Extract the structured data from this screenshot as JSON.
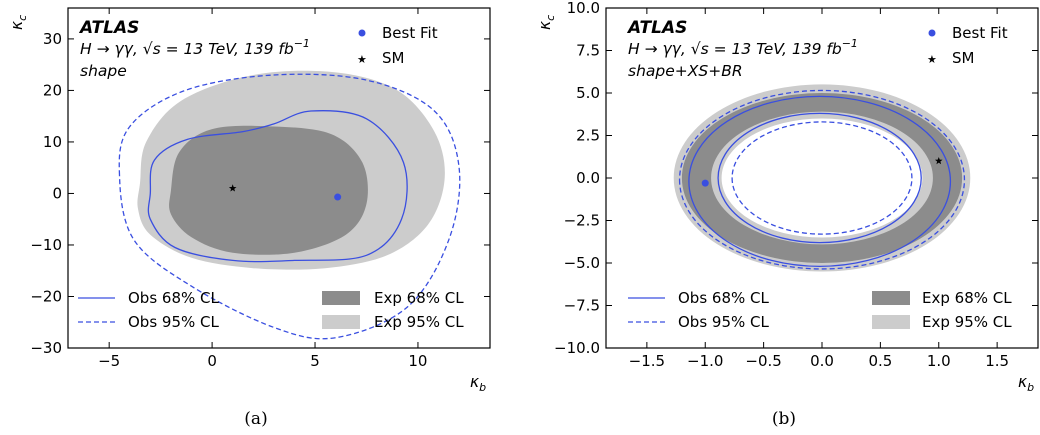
{
  "figure": {
    "panels": [
      {
        "caption": "(a)",
        "experiment": "ATLAS",
        "process_line": "H → γγ, √s = 13 TeV, 139 fb",
        "lumi_exponent": "−1",
        "analysis": "shape",
        "xlabel": "κ",
        "xlabel_sub": "b",
        "ylabel": "κ",
        "ylabel_sub": "c",
        "legend_markers": [
          {
            "label": "Best Fit",
            "color": "#3a4fe0",
            "marker": "circle"
          },
          {
            "label": "SM",
            "color": "#000000",
            "marker": "star"
          }
        ],
        "legend_contours": [
          {
            "label": "Obs 68% CL",
            "style": "solid",
            "color": "#3a4fe0"
          },
          {
            "label": "Obs 95% CL",
            "style": "dashed",
            "color": "#3a4fe0"
          },
          {
            "label": "Exp 68% CL",
            "style": "fill",
            "color": "#8c8c8c"
          },
          {
            "label": "Exp 95% CL",
            "style": "fill",
            "color": "#cccccc"
          }
        ]
      },
      {
        "caption": "(b)",
        "experiment": "ATLAS",
        "process_line": "H → γγ, √s = 13 TeV, 139 fb",
        "lumi_exponent": "−1",
        "analysis": "shape+XS+BR",
        "xlabel": "κ",
        "xlabel_sub": "b",
        "ylabel": "κ",
        "ylabel_sub": "c",
        "legend_markers": [
          {
            "label": "Best Fit",
            "color": "#3a4fe0",
            "marker": "circle"
          },
          {
            "label": "SM",
            "color": "#000000",
            "marker": "star"
          }
        ],
        "legend_contours": [
          {
            "label": "Obs 68% CL",
            "style": "solid",
            "color": "#3a4fe0"
          },
          {
            "label": "Obs 95% CL",
            "style": "dashed",
            "color": "#3a4fe0"
          },
          {
            "label": "Exp 68% CL",
            "style": "fill",
            "color": "#8c8c8c"
          },
          {
            "label": "Exp 95% CL",
            "style": "fill",
            "color": "#cccccc"
          }
        ]
      }
    ]
  },
  "chart_data": [
    {
      "type": "scatter",
      "title": "",
      "xlabel": "κ_b",
      "ylabel": "κ_c",
      "xlim": [
        -7,
        13.5
      ],
      "ylim": [
        -30,
        36
      ],
      "xticks": [
        -5,
        0,
        5,
        10
      ],
      "xtick_labels": [
        "−5",
        "0",
        "5",
        "10"
      ],
      "yticks": [
        -30,
        -20,
        -10,
        0,
        10,
        20,
        30
      ],
      "ytick_labels": [
        "−30",
        "−20",
        "−10",
        "0",
        "10",
        "20",
        "30"
      ],
      "grid": false,
      "legend_placement": "top-right and bottom",
      "best_fit": {
        "x": 6.1,
        "y": -0.7
      },
      "sm": {
        "x": 1,
        "y": 1
      },
      "contours": {
        "exp95": [
          [
            -3.5,
            2
          ],
          [
            -3.2,
            10
          ],
          [
            -1.5,
            18
          ],
          [
            2,
            23
          ],
          [
            6,
            23.5
          ],
          [
            9,
            20
          ],
          [
            10.8,
            12
          ],
          [
            11.3,
            3
          ],
          [
            10.5,
            -6
          ],
          [
            8.5,
            -12
          ],
          [
            5.5,
            -14.5
          ],
          [
            2,
            -14.5
          ],
          [
            -1,
            -12.5
          ],
          [
            -3,
            -8
          ],
          [
            -3.6,
            -3
          ]
        ],
        "exp68": [
          [
            -2,
            0.5
          ],
          [
            -1.6,
            8
          ],
          [
            0,
            12.5
          ],
          [
            3,
            13
          ],
          [
            5.8,
            11.5
          ],
          [
            7.3,
            6
          ],
          [
            7.5,
            -2
          ],
          [
            6.5,
            -8
          ],
          [
            4,
            -11.5
          ],
          [
            1,
            -11.5
          ],
          [
            -1,
            -8.5
          ],
          [
            -2,
            -4
          ]
        ],
        "obs68": [
          [
            -3,
            0
          ],
          [
            -2.8,
            6.5
          ],
          [
            -1.2,
            10.5
          ],
          [
            1.5,
            12
          ],
          [
            3,
            13.5
          ],
          [
            4.8,
            16
          ],
          [
            7.5,
            14.5
          ],
          [
            9.3,
            6
          ],
          [
            9.2,
            -5
          ],
          [
            7.5,
            -12
          ],
          [
            4,
            -13
          ],
          [
            1,
            -13
          ],
          [
            -1.8,
            -10.5
          ],
          [
            -3,
            -5
          ]
        ],
        "obs95": [
          [
            -4.5,
            3.5
          ],
          [
            -4,
            13
          ],
          [
            -1.3,
            20
          ],
          [
            3,
            23
          ],
          [
            7.5,
            22
          ],
          [
            10.8,
            16
          ],
          [
            12,
            5
          ],
          [
            11.5,
            -9
          ],
          [
            9.5,
            -22
          ],
          [
            6,
            -28
          ],
          [
            3,
            -26
          ],
          [
            -1,
            -18
          ],
          [
            -3.8,
            -9
          ]
        ]
      }
    },
    {
      "type": "scatter",
      "title": "",
      "xlabel": "κ_b",
      "ylabel": "κ_c",
      "xlim": [
        -1.85,
        1.85
      ],
      "ylim": [
        -10,
        10
      ],
      "xticks": [
        -1.5,
        -1.0,
        -0.5,
        0.0,
        0.5,
        1.0,
        1.5
      ],
      "xtick_labels": [
        "−1.5",
        "−1.0",
        "−0.5",
        "0.0",
        "0.5",
        "1.0",
        "1.5"
      ],
      "yticks": [
        -10,
        -7.5,
        -5,
        -2.5,
        0,
        2.5,
        5,
        7.5,
        10
      ],
      "ytick_labels": [
        "−10.0",
        "−7.5",
        "−5.0",
        "−2.5",
        "0.0",
        "2.5",
        "5.0",
        "7.5",
        "10.0"
      ],
      "grid": false,
      "legend_placement": "top-right and bottom",
      "best_fit": {
        "x": -1.0,
        "y": -0.3
      },
      "sm": {
        "x": 1.0,
        "y": 1.0
      },
      "contours": {
        "exp95": [
          {
            "cx": 0,
            "cy": 0,
            "rx": 1.27,
            "ry": 5.5
          }
        ],
        "exp68": [
          {
            "cx": 0,
            "cy": 0,
            "rx": 1.2,
            "ry": 5.0
          },
          {
            "cx": 0,
            "cy": 0,
            "rx": 0.95,
            "ry": 3.9
          }
        ],
        "exp95_inner": [
          {
            "cx": 0,
            "cy": 0,
            "rx": 0.86,
            "ry": 3.5
          }
        ],
        "obs68": [
          {
            "cx": -0.02,
            "cy": -0.2,
            "rx": 1.12,
            "ry": 5.0
          },
          {
            "cx": -0.02,
            "cy": 0,
            "rx": 0.87,
            "ry": 3.8
          }
        ],
        "obs95": [
          {
            "cx": 0,
            "cy": -0.1,
            "rx": 1.22,
            "ry": 5.25
          },
          {
            "cx": 0,
            "cy": 0,
            "rx": 0.77,
            "ry": 3.3
          }
        ]
      }
    }
  ]
}
